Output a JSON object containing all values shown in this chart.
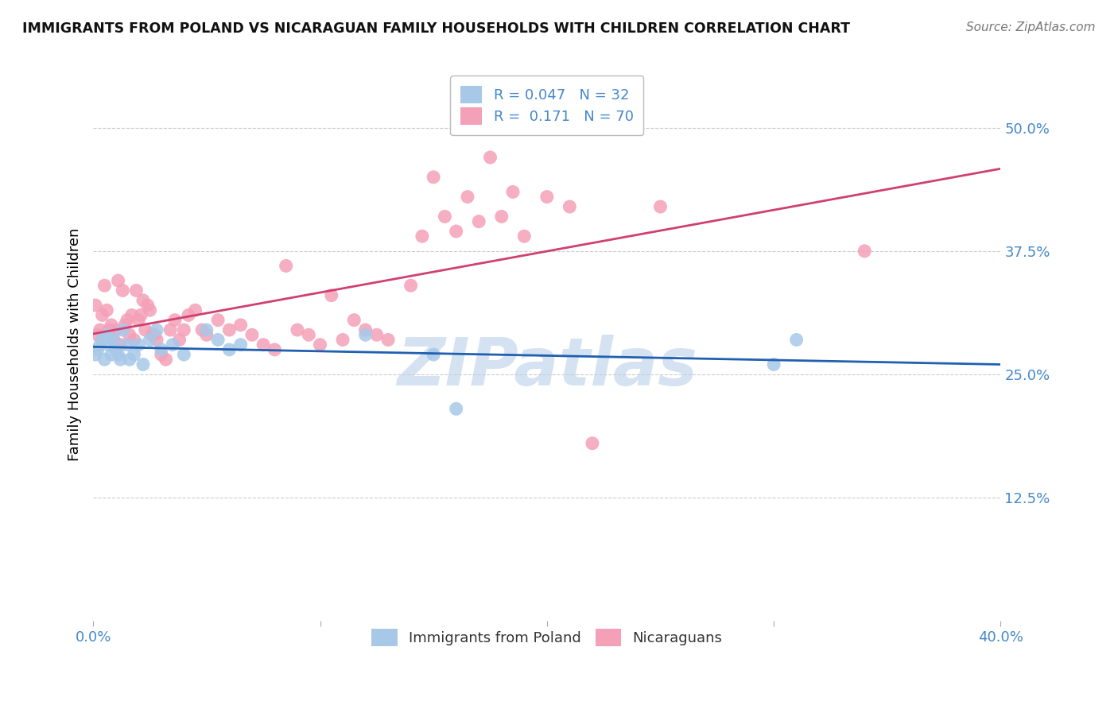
{
  "title": "IMMIGRANTS FROM POLAND VS NICARAGUAN FAMILY HOUSEHOLDS WITH CHILDREN CORRELATION CHART",
  "source": "Source: ZipAtlas.com",
  "ylabel_label": "Family Households with Children",
  "legend_label1": "Immigrants from Poland",
  "legend_label2": "Nicaraguans",
  "r1": 0.047,
  "n1": 32,
  "r2": 0.171,
  "n2": 70,
  "color1": "#a8c8e8",
  "color2": "#f4a0b8",
  "line_color1": "#2060b0",
  "line_color2": "#d04070",
  "tick_color": "#4488cc",
  "xlim": [
    0.0,
    0.4
  ],
  "ylim": [
    0.0,
    0.56
  ],
  "ytick_labels_right": [
    "50.0%",
    "37.5%",
    "25.0%",
    "12.5%"
  ],
  "ytick_vals_right": [
    0.5,
    0.375,
    0.25,
    0.125
  ],
  "poland_x": [
    0.001,
    0.002,
    0.003,
    0.004,
    0.005,
    0.006,
    0.007,
    0.008,
    0.009,
    0.01,
    0.011,
    0.012,
    0.013,
    0.015,
    0.016,
    0.018,
    0.02,
    0.022,
    0.025,
    0.028,
    0.03,
    0.035,
    0.04,
    0.05,
    0.055,
    0.06,
    0.065,
    0.12,
    0.15,
    0.16,
    0.3,
    0.31
  ],
  "poland_y": [
    0.27,
    0.275,
    0.28,
    0.285,
    0.265,
    0.29,
    0.28,
    0.27,
    0.285,
    0.275,
    0.27,
    0.265,
    0.295,
    0.28,
    0.265,
    0.27,
    0.28,
    0.26,
    0.285,
    0.295,
    0.275,
    0.28,
    0.27,
    0.295,
    0.285,
    0.275,
    0.28,
    0.29,
    0.27,
    0.215,
    0.26,
    0.285
  ],
  "nicaraguan_x": [
    0.001,
    0.002,
    0.003,
    0.004,
    0.005,
    0.006,
    0.007,
    0.008,
    0.009,
    0.01,
    0.011,
    0.012,
    0.013,
    0.014,
    0.015,
    0.016,
    0.017,
    0.018,
    0.019,
    0.02,
    0.021,
    0.022,
    0.023,
    0.024,
    0.025,
    0.026,
    0.027,
    0.028,
    0.03,
    0.032,
    0.034,
    0.036,
    0.038,
    0.04,
    0.042,
    0.045,
    0.048,
    0.05,
    0.055,
    0.06,
    0.065,
    0.07,
    0.075,
    0.08,
    0.085,
    0.09,
    0.095,
    0.1,
    0.105,
    0.11,
    0.115,
    0.12,
    0.125,
    0.13,
    0.14,
    0.145,
    0.15,
    0.155,
    0.16,
    0.165,
    0.17,
    0.175,
    0.18,
    0.185,
    0.19,
    0.2,
    0.21,
    0.22,
    0.25,
    0.34
  ],
  "nicaraguan_y": [
    0.32,
    0.29,
    0.295,
    0.31,
    0.34,
    0.315,
    0.295,
    0.3,
    0.285,
    0.295,
    0.345,
    0.28,
    0.335,
    0.3,
    0.305,
    0.29,
    0.31,
    0.285,
    0.335,
    0.305,
    0.31,
    0.325,
    0.295,
    0.32,
    0.315,
    0.29,
    0.29,
    0.285,
    0.27,
    0.265,
    0.295,
    0.305,
    0.285,
    0.295,
    0.31,
    0.315,
    0.295,
    0.29,
    0.305,
    0.295,
    0.3,
    0.29,
    0.28,
    0.275,
    0.36,
    0.295,
    0.29,
    0.28,
    0.33,
    0.285,
    0.305,
    0.295,
    0.29,
    0.285,
    0.34,
    0.39,
    0.45,
    0.41,
    0.395,
    0.43,
    0.405,
    0.47,
    0.41,
    0.435,
    0.39,
    0.43,
    0.42,
    0.18,
    0.42,
    0.375
  ],
  "background_color": "#ffffff",
  "grid_color": "#cccccc",
  "watermark": "ZIPatlas",
  "watermark_color": "#b8d0e8"
}
